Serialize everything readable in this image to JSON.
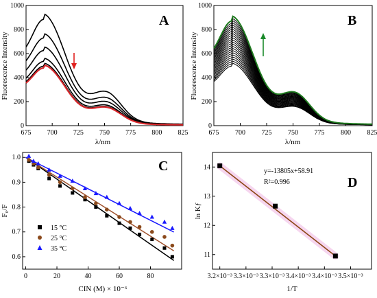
{
  "chart_data": [
    {
      "panel": "A",
      "type": "line",
      "ylabel": "Fluorescence Intensity",
      "xlabel": "λ/nm",
      "xlim": [
        675,
        825
      ],
      "ylim": [
        0,
        1000
      ],
      "xticks": [
        675,
        700,
        725,
        750,
        775,
        800,
        825
      ],
      "yticks": [
        0,
        200,
        400,
        600,
        800,
        1000
      ],
      "arrow": {
        "direction": "down",
        "color": "#e0201e"
      },
      "peak_x": 692,
      "series": [
        {
          "color": "#000000",
          "peak": 885
        },
        {
          "color": "#000000",
          "peak": 730
        },
        {
          "color": "#000000",
          "peak": 625
        },
        {
          "color": "#000000",
          "peak": 535
        },
        {
          "color": "#000000",
          "peak": 495
        },
        {
          "color": "#d8262a",
          "peak": 480
        }
      ]
    },
    {
      "panel": "B",
      "type": "line",
      "ylabel": "Fluorescence Intensity",
      "xlabel": "λ/nm",
      "xlim": [
        675,
        825
      ],
      "ylim": [
        0,
        1000
      ],
      "xticks": [
        675,
        700,
        725,
        750,
        775,
        800,
        825
      ],
      "yticks": [
        0,
        200,
        400,
        600,
        800,
        1000
      ],
      "arrow": {
        "direction": "up",
        "color": "#1a8a2a"
      },
      "peak_x": 692,
      "series_range": {
        "count": 22,
        "min_peak": 495,
        "max_peak": 850,
        "color": "#000000"
      },
      "top_series": {
        "color": "#1f7a1f",
        "peak": 870
      }
    },
    {
      "panel": "C",
      "type": "scatter",
      "ylabel": "F₀/F",
      "xlabel": "CIN (M) × 10⁻⁶",
      "xlim": [
        -2,
        100
      ],
      "ylim": [
        0.55,
        1.02
      ],
      "xticks": [
        0,
        20,
        40,
        60,
        80
      ],
      "yticks": [
        0.6,
        0.7,
        0.8,
        0.9,
        1.0
      ],
      "ytick_labels": [
        "0.6",
        "0.7",
        "0.8",
        "0.9",
        "1.0"
      ],
      "series": [
        {
          "name": "15 °C",
          "marker": "square",
          "color": "#000000",
          "line_color": "#000000",
          "x": [
            2,
            5,
            8,
            15,
            22,
            30,
            38,
            45,
            52,
            60,
            67,
            73,
            81,
            89,
            94
          ],
          "y": [
            0.985,
            0.97,
            0.955,
            0.915,
            0.885,
            0.857,
            0.83,
            0.8,
            0.765,
            0.735,
            0.715,
            0.69,
            0.67,
            0.635,
            0.6
          ],
          "fit": [
            1.0,
            0.5848
          ]
        },
        {
          "name": "25 °C",
          "marker": "circle",
          "color": "#8b4a1c",
          "line_color": "#a0522d",
          "x": [
            2,
            5,
            8,
            15,
            22,
            30,
            38,
            45,
            52,
            60,
            67,
            73,
            81,
            89,
            94
          ],
          "y": [
            0.99,
            0.975,
            0.96,
            0.93,
            0.9,
            0.875,
            0.84,
            0.815,
            0.79,
            0.76,
            0.74,
            0.72,
            0.7,
            0.68,
            0.645
          ],
          "fit": [
            1.0,
            0.6236
          ]
        },
        {
          "name": "35 °C",
          "marker": "triangle",
          "color": "#1a1aff",
          "line_color": "#1a1aff",
          "x": [
            2,
            5,
            8,
            15,
            22,
            30,
            38,
            45,
            52,
            60,
            67,
            73,
            81,
            89,
            94
          ],
          "y": [
            1.005,
            0.985,
            0.975,
            0.95,
            0.925,
            0.905,
            0.875,
            0.855,
            0.84,
            0.815,
            0.795,
            0.775,
            0.76,
            0.74,
            0.715
          ],
          "fit": [
            1.0,
            0.6994
          ]
        }
      ],
      "legend_position": "bottom-left"
    },
    {
      "panel": "D",
      "type": "scatter",
      "ylabel": "ln Kƒ",
      "xlabel": "1/T",
      "xlim": [
        0.003236,
        0.00354
      ],
      "ylim": [
        10.5,
        14.5
      ],
      "xticks": [
        0.00325,
        0.0033,
        0.00335,
        0.0034,
        0.00345,
        0.0035
      ],
      "yticks": [
        11,
        12,
        13,
        14
      ],
      "xtick_labels": [
        "3.2×10⁻³",
        "3.3×10⁻³",
        "3.3×10⁻³",
        "3.4×10⁻³",
        "3.4×10⁻³",
        "3.5×10⁻³"
      ],
      "points": {
        "x": [
          0.00325,
          0.003356,
          0.003471
        ],
        "y": [
          14.04,
          12.66,
          10.95
        ],
        "marker": "square",
        "color": "#000000"
      },
      "fit_line": {
        "color": "#8b4513",
        "points_x": [
          0.00325,
          0.003471
        ],
        "points_y": [
          14.04,
          10.95
        ]
      },
      "annotation_eq": "y=-13805x+58.91",
      "annotation_r2": "R²=0.996"
    }
  ],
  "labels": {
    "a": "A",
    "b": "B",
    "c": "C",
    "d": "D"
  },
  "xlabels": {
    "a": "λ/nm",
    "b": "λ/nm",
    "c": "CIN (M) × 10⁻⁶",
    "d": "1/T"
  },
  "ylabels": {
    "a": "Fluorescence Intensity",
    "b": "Fluorescence Intensity",
    "c": "F₀/F",
    "d": "ln Kƒ"
  }
}
